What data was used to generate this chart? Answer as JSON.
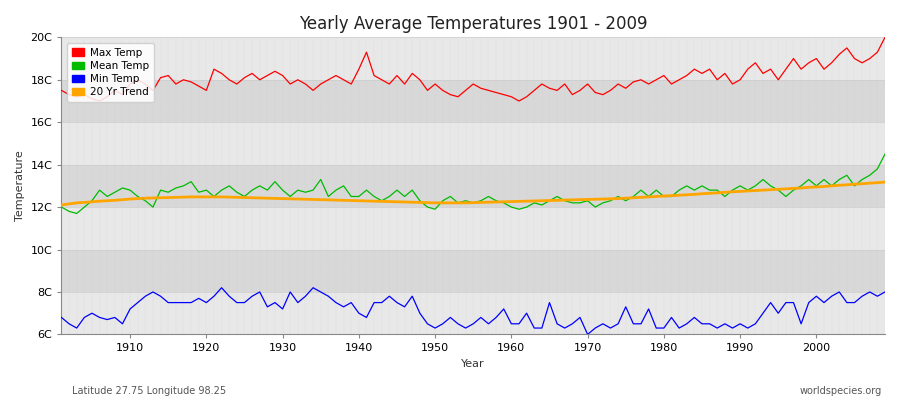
{
  "title": "Yearly Average Temperatures 1901 - 2009",
  "xlabel": "Year",
  "ylabel": "Temperature",
  "subtitle": "Latitude 27.75 Longitude 98.25",
  "watermark": "worldspecies.org",
  "ylim": [
    6.0,
    20.0
  ],
  "xlim": [
    1901,
    2009
  ],
  "yticks": [
    6,
    8,
    10,
    12,
    14,
    16,
    18,
    20
  ],
  "ytick_labels": [
    "6C",
    "8C",
    "10C",
    "12C",
    "14C",
    "16C",
    "18C",
    "20C"
  ],
  "xticks": [
    1910,
    1920,
    1930,
    1940,
    1950,
    1960,
    1970,
    1980,
    1990,
    2000
  ],
  "legend_colors": [
    "#ff0000",
    "#00bb00",
    "#0000ff",
    "#ffa500"
  ],
  "legend_labels": [
    "Max Temp",
    "Mean Temp",
    "Min Temp",
    "20 Yr Trend"
  ],
  "fig_bg": "#ffffff",
  "plot_bg_light": "#e8e8e8",
  "plot_bg_dark": "#d8d8d8",
  "max_temp": [
    17.5,
    17.3,
    17.2,
    17.3,
    17.1,
    17.0,
    17.2,
    17.5,
    17.3,
    17.8,
    18.0,
    17.8,
    17.5,
    18.1,
    18.2,
    17.8,
    18.0,
    17.9,
    17.7,
    17.5,
    18.5,
    18.3,
    18.0,
    17.8,
    18.1,
    18.3,
    18.0,
    18.2,
    18.4,
    18.2,
    17.8,
    18.0,
    17.8,
    17.5,
    17.8,
    18.0,
    18.2,
    18.0,
    17.8,
    18.5,
    19.3,
    18.2,
    18.0,
    17.8,
    18.2,
    17.8,
    18.3,
    18.0,
    17.5,
    17.8,
    17.5,
    17.3,
    17.2,
    17.5,
    17.8,
    17.6,
    17.5,
    17.4,
    17.3,
    17.2,
    17.0,
    17.2,
    17.5,
    17.8,
    17.6,
    17.5,
    17.8,
    17.3,
    17.5,
    17.8,
    17.4,
    17.3,
    17.5,
    17.8,
    17.6,
    17.9,
    18.0,
    17.8,
    18.0,
    18.2,
    17.8,
    18.0,
    18.2,
    18.5,
    18.3,
    18.5,
    18.0,
    18.3,
    17.8,
    18.0,
    18.5,
    18.8,
    18.3,
    18.5,
    18.0,
    18.5,
    19.0,
    18.5,
    18.8,
    19.0,
    18.5,
    18.8,
    19.2,
    19.5,
    19.0,
    18.8,
    19.0,
    19.3,
    20.0
  ],
  "mean_temp": [
    12.0,
    11.8,
    11.7,
    12.0,
    12.3,
    12.8,
    12.5,
    12.7,
    12.9,
    12.8,
    12.5,
    12.3,
    12.0,
    12.8,
    12.7,
    12.9,
    13.0,
    13.2,
    12.7,
    12.8,
    12.5,
    12.8,
    13.0,
    12.7,
    12.5,
    12.8,
    13.0,
    12.8,
    13.2,
    12.8,
    12.5,
    12.8,
    12.7,
    12.8,
    13.3,
    12.5,
    12.8,
    13.0,
    12.5,
    12.5,
    12.8,
    12.5,
    12.3,
    12.5,
    12.8,
    12.5,
    12.8,
    12.3,
    12.0,
    11.9,
    12.3,
    12.5,
    12.2,
    12.3,
    12.2,
    12.3,
    12.5,
    12.3,
    12.2,
    12.0,
    11.9,
    12.0,
    12.2,
    12.1,
    12.3,
    12.5,
    12.3,
    12.2,
    12.2,
    12.3,
    12.0,
    12.2,
    12.3,
    12.5,
    12.3,
    12.5,
    12.8,
    12.5,
    12.8,
    12.5,
    12.5,
    12.8,
    13.0,
    12.8,
    13.0,
    12.8,
    12.8,
    12.5,
    12.8,
    13.0,
    12.8,
    13.0,
    13.3,
    13.0,
    12.8,
    12.5,
    12.8,
    13.0,
    13.3,
    13.0,
    13.3,
    13.0,
    13.3,
    13.5,
    13.0,
    13.3,
    13.5,
    13.8,
    14.5
  ],
  "min_temp": [
    6.8,
    6.5,
    6.3,
    6.8,
    7.0,
    6.8,
    6.7,
    6.8,
    6.5,
    7.2,
    7.5,
    7.8,
    8.0,
    7.8,
    7.5,
    7.5,
    7.5,
    7.5,
    7.7,
    7.5,
    7.8,
    8.2,
    7.8,
    7.5,
    7.5,
    7.8,
    8.0,
    7.3,
    7.5,
    7.2,
    8.0,
    7.5,
    7.8,
    8.2,
    8.0,
    7.8,
    7.5,
    7.3,
    7.5,
    7.0,
    6.8,
    7.5,
    7.5,
    7.8,
    7.5,
    7.3,
    7.8,
    7.0,
    6.5,
    6.3,
    6.5,
    6.8,
    6.5,
    6.3,
    6.5,
    6.8,
    6.5,
    6.8,
    7.2,
    6.5,
    6.5,
    7.0,
    6.3,
    6.3,
    7.5,
    6.5,
    6.3,
    6.5,
    6.8,
    6.0,
    6.3,
    6.5,
    6.3,
    6.5,
    7.3,
    6.5,
    6.5,
    7.2,
    6.3,
    6.3,
    6.8,
    6.3,
    6.5,
    6.8,
    6.5,
    6.5,
    6.3,
    6.5,
    6.3,
    6.5,
    6.3,
    6.5,
    7.0,
    7.5,
    7.0,
    7.5,
    7.5,
    6.5,
    7.5,
    7.8,
    7.5,
    7.8,
    8.0,
    7.5,
    7.5,
    7.8,
    8.0,
    7.8,
    8.0
  ],
  "trend_start_year": 1901,
  "trend_values": [
    12.1,
    12.15,
    12.2,
    12.22,
    12.25,
    12.28,
    12.3,
    12.32,
    12.35,
    12.38,
    12.4,
    12.42,
    12.43,
    12.44,
    12.45,
    12.46,
    12.47,
    12.48,
    12.48,
    12.48,
    12.48,
    12.48,
    12.47,
    12.46,
    12.45,
    12.44,
    12.43,
    12.42,
    12.41,
    12.4,
    12.39,
    12.38,
    12.37,
    12.36,
    12.35,
    12.34,
    12.33,
    12.32,
    12.31,
    12.3,
    12.29,
    12.28,
    12.27,
    12.26,
    12.25,
    12.24,
    12.23,
    12.22,
    12.21,
    12.2,
    12.2,
    12.2,
    12.2,
    12.2,
    12.21,
    12.22,
    12.23,
    12.24,
    12.25,
    12.26,
    12.27,
    12.28,
    12.29,
    12.3,
    12.31,
    12.32,
    12.33,
    12.34,
    12.35,
    12.36,
    12.37,
    12.38,
    12.39,
    12.4,
    12.42,
    12.44,
    12.46,
    12.48,
    12.5,
    12.52,
    12.54,
    12.56,
    12.58,
    12.6,
    12.63,
    12.65,
    12.67,
    12.7,
    12.72,
    12.74,
    12.76,
    12.78,
    12.8,
    12.82,
    12.84,
    12.86,
    12.88,
    12.9,
    12.93,
    12.95,
    12.97,
    13.0,
    13.03,
    13.05,
    13.08,
    13.1,
    13.13,
    13.15,
    13.18
  ]
}
